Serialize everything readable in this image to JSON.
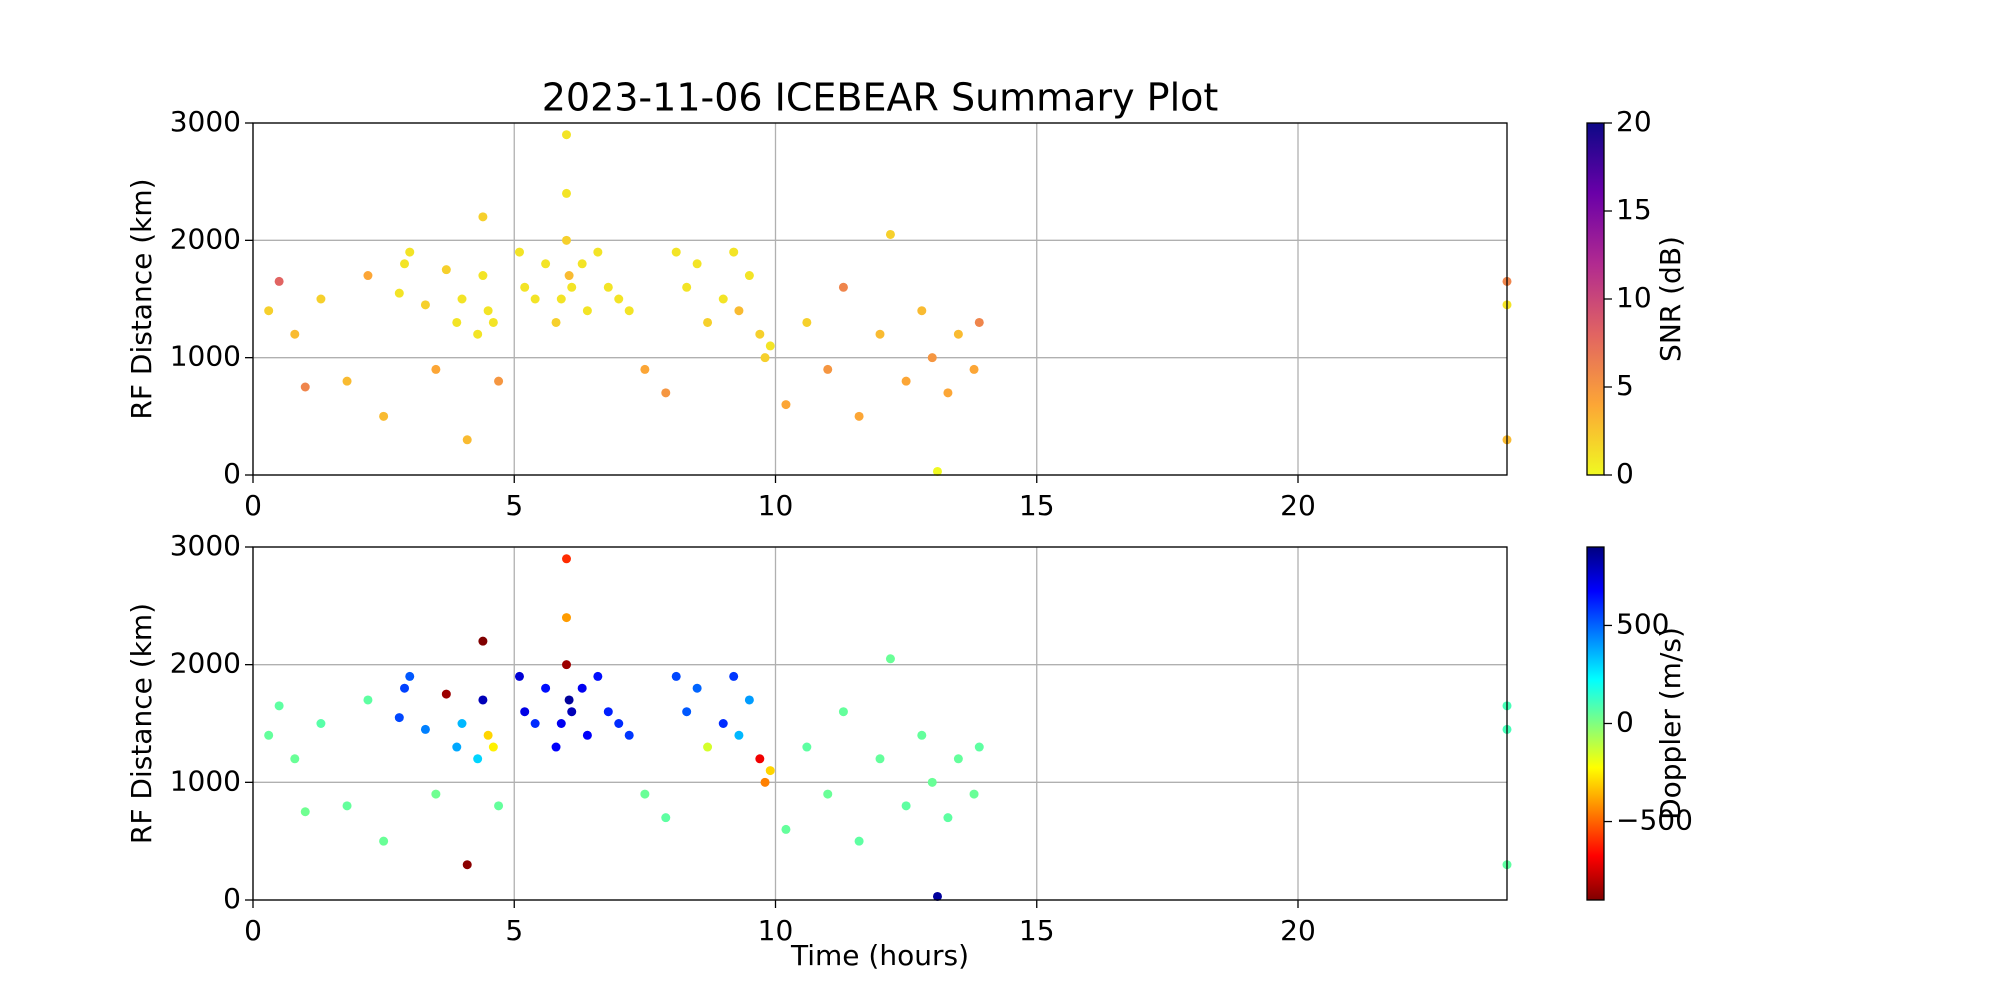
{
  "chart_data": [
    {
      "type": "scatter",
      "title": "2023-11-06 ICEBEAR Summary Plot",
      "y_label": "RF Distance (km)",
      "xlim": [
        0,
        24
      ],
      "ylim": [
        0,
        3000
      ],
      "xticks": [
        0,
        5,
        10,
        15,
        20
      ],
      "yticks": [
        0,
        1000,
        2000,
        3000
      ],
      "grid": true,
      "x": [
        0.3,
        0.5,
        0.8,
        1.0,
        1.3,
        1.8,
        2.2,
        2.5,
        2.8,
        2.9,
        3.0,
        3.3,
        3.5,
        3.7,
        3.9,
        4.0,
        4.1,
        4.3,
        4.4,
        4.5,
        4.6,
        4.7,
        5.1,
        5.2,
        5.4,
        5.6,
        5.8,
        5.9,
        6.0,
        6.0,
        6.0,
        6.05,
        6.1,
        6.3,
        6.4,
        6.6,
        6.8,
        7.0,
        7.2,
        7.5,
        7.9,
        8.1,
        8.3,
        8.5,
        8.7,
        9.0,
        9.2,
        9.3,
        9.5,
        9.7,
        9.8,
        9.9,
        10.2,
        10.6,
        11.0,
        11.3,
        11.6,
        12.0,
        12.2,
        12.5,
        12.8,
        13.0,
        13.1,
        13.3,
        13.5,
        13.8,
        13.9,
        24.0,
        24.0,
        24.0,
        4.4
      ],
      "values": [
        1400,
        1650,
        1200,
        750,
        1500,
        800,
        1700,
        500,
        1550,
        1800,
        1900,
        1450,
        900,
        1750,
        1300,
        1500,
        300,
        1200,
        1700,
        1400,
        1300,
        800,
        1900,
        1600,
        1500,
        1800,
        1300,
        1500,
        2900,
        2400,
        2000,
        1700,
        1600,
        1800,
        1400,
        1900,
        1600,
        1500,
        1400,
        900,
        700,
        1900,
        1600,
        1800,
        1300,
        1500,
        1900,
        1400,
        1700,
        1200,
        1000,
        1100,
        600,
        1300,
        900,
        1600,
        500,
        1200,
        2050,
        800,
        1400,
        1000,
        30,
        700,
        1200,
        900,
        1300,
        1450,
        1650,
        300,
        2200
      ],
      "color_values": [
        2,
        8,
        3,
        6,
        2,
        3,
        4,
        3,
        1,
        1,
        1,
        2,
        4,
        2,
        1,
        1,
        3,
        1,
        1,
        1,
        1,
        5,
        1,
        1,
        1,
        1,
        2,
        1,
        1,
        1,
        2,
        3,
        1,
        1,
        1,
        1,
        1,
        1,
        1,
        4,
        5,
        1,
        1,
        1,
        2,
        1,
        1,
        3,
        1,
        2,
        2,
        1,
        4,
        2,
        5,
        6,
        4,
        3,
        2,
        4,
        3,
        5,
        0,
        4,
        3,
        4,
        6,
        1,
        6,
        3,
        2
      ],
      "colorbar": {
        "label": "SNR (dB)",
        "lim": [
          0,
          20
        ],
        "ticks": [
          0,
          5,
          10,
          15,
          20
        ],
        "colormap": [
          "#f0f921",
          "#fca636",
          "#e16462",
          "#b12a90",
          "#6a00a8",
          "#0d0887"
        ]
      }
    },
    {
      "type": "scatter",
      "x_label": "Time (hours)",
      "y_label": "RF Distance (km)",
      "xlim": [
        0,
        24
      ],
      "ylim": [
        0,
        3000
      ],
      "xticks": [
        0,
        5,
        10,
        15,
        20
      ],
      "yticks": [
        0,
        1000,
        2000,
        3000
      ],
      "grid": true,
      "x": [
        0.3,
        0.5,
        0.8,
        1.0,
        1.3,
        1.8,
        2.2,
        2.5,
        2.8,
        2.9,
        3.0,
        3.3,
        3.5,
        3.7,
        3.9,
        4.0,
        4.1,
        4.3,
        4.4,
        4.5,
        4.6,
        4.7,
        5.1,
        5.2,
        5.4,
        5.6,
        5.8,
        5.9,
        6.0,
        6.0,
        6.0,
        6.05,
        6.1,
        6.3,
        6.4,
        6.6,
        6.8,
        7.0,
        7.2,
        7.5,
        7.9,
        8.1,
        8.3,
        8.5,
        8.7,
        9.0,
        9.2,
        9.3,
        9.5,
        9.7,
        9.8,
        9.9,
        10.2,
        10.6,
        11.0,
        11.3,
        11.6,
        12.0,
        12.2,
        12.5,
        12.8,
        13.0,
        13.1,
        13.3,
        13.5,
        13.8,
        13.9,
        24.0,
        24.0,
        24.0,
        4.4
      ],
      "values": [
        1400,
        1650,
        1200,
        750,
        1500,
        800,
        1700,
        500,
        1550,
        1800,
        1900,
        1450,
        900,
        1750,
        1300,
        1500,
        300,
        1200,
        1700,
        1400,
        1300,
        800,
        1900,
        1600,
        1500,
        1800,
        1300,
        1500,
        2900,
        2400,
        2000,
        1700,
        1600,
        1800,
        1400,
        1900,
        1600,
        1500,
        1400,
        900,
        700,
        1900,
        1600,
        1800,
        1300,
        1500,
        1900,
        1400,
        1700,
        1200,
        1000,
        1100,
        600,
        1300,
        900,
        1600,
        500,
        1200,
        2050,
        800,
        1400,
        1000,
        30,
        700,
        1200,
        900,
        1300,
        1450,
        1650,
        300,
        2200
      ],
      "color_values": [
        50,
        60,
        40,
        30,
        70,
        50,
        60,
        40,
        550,
        560,
        520,
        450,
        30,
        -850,
        380,
        350,
        -880,
        300,
        800,
        -300,
        -250,
        50,
        750,
        720,
        600,
        650,
        680,
        700,
        -600,
        -400,
        -850,
        850,
        800,
        700,
        680,
        650,
        620,
        600,
        580,
        40,
        60,
        550,
        520,
        500,
        -150,
        600,
        580,
        350,
        400,
        -700,
        -450,
        -300,
        50,
        60,
        40,
        50,
        60,
        50,
        40,
        60,
        50,
        40,
        850,
        60,
        50,
        40,
        60,
        100,
        100,
        60,
        -900
      ],
      "colorbar": {
        "label": "Doppler (m/s)",
        "lim": [
          -900,
          900
        ],
        "ticks": [
          {
            "value": -500,
            "label": "−500"
          },
          0,
          500
        ],
        "colormap": [
          "#800000",
          "#ff0000",
          "#ff8000",
          "#ffff00",
          "#80ff80",
          "#00ffff",
          "#0080ff",
          "#0000ff",
          "#000080"
        ]
      }
    }
  ]
}
